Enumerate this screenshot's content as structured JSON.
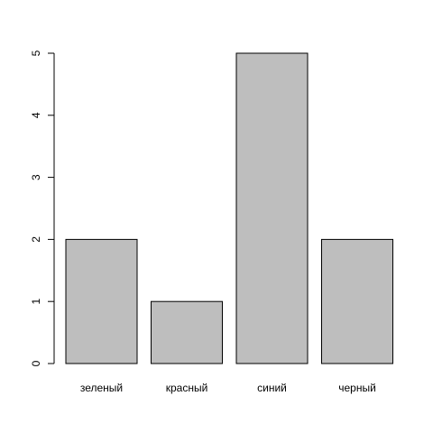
{
  "chart_data": {
    "type": "bar",
    "categories": [
      "зеленый",
      "красный",
      "синий",
      "черный"
    ],
    "values": [
      2,
      1,
      5,
      2
    ],
    "title": "",
    "xlabel": "",
    "ylabel": "",
    "ylim": [
      0,
      5
    ],
    "y_ticks": [
      "0",
      "1",
      "2",
      "3",
      "4",
      "5"
    ],
    "grid": false,
    "legend": "none",
    "bar_color": "#bebebe",
    "bar_border_color": "#000000",
    "axis_color": "#000000"
  }
}
